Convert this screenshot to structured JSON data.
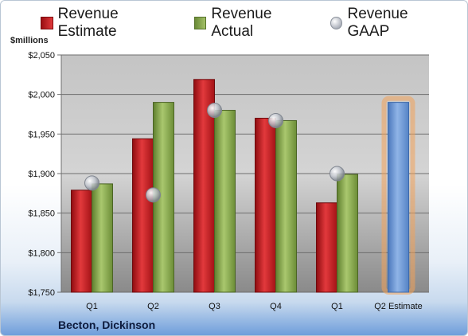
{
  "units_label": "$millions",
  "company": "Becton, Dickinson",
  "legend": {
    "estimate": "Revenue Estimate",
    "actual": "Revenue Actual",
    "gaap": "Revenue GAAP"
  },
  "colors": {
    "estimate": "#c8191d",
    "actual": "#8fae52",
    "gaap": "#b4b8c0",
    "forecast": "#6f9ad3",
    "forecast_glow": "#f2a25a"
  },
  "chart_data": {
    "type": "bar",
    "categories": [
      "Q1",
      "Q2",
      "Q3",
      "Q4",
      "Q1",
      "Q2 Estimate"
    ],
    "ylabel": "$millions",
    "ylim": [
      1750,
      2050
    ],
    "yticks": [
      "$1,750",
      "$1,800",
      "$1,850",
      "$1,900",
      "$1,950",
      "$2,000",
      "$2,050"
    ],
    "ytick_values": [
      1750,
      1800,
      1850,
      1900,
      1950,
      2000,
      2050
    ],
    "grid": true,
    "legend_position": "top",
    "series": [
      {
        "name": "Revenue Estimate",
        "kind": "bar",
        "values": [
          1879,
          1944,
          2019,
          1970,
          1863,
          null
        ]
      },
      {
        "name": "Revenue Actual",
        "kind": "bar",
        "values": [
          1887,
          1990,
          1980,
          1967,
          1899,
          1990
        ]
      },
      {
        "name": "Revenue GAAP",
        "kind": "marker",
        "values": [
          1888,
          1873,
          1980,
          1967,
          1900,
          null
        ]
      }
    ]
  }
}
